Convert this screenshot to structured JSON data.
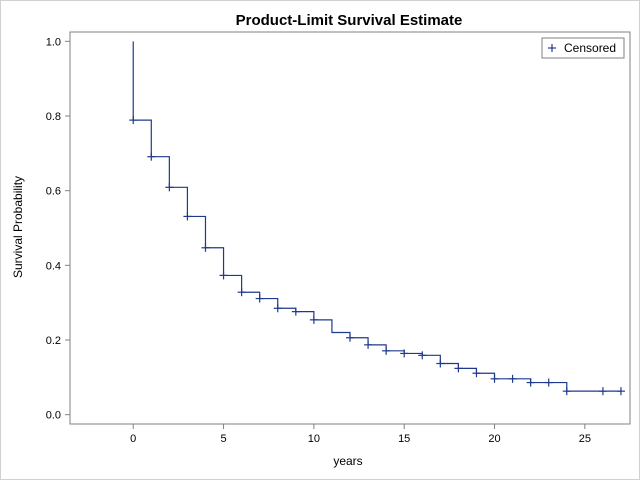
{
  "chart_data": {
    "type": "line",
    "title": "Product-Limit Survival Estimate",
    "xlabel": "years",
    "ylabel": "Survival Probability",
    "xlim": [
      -3.5,
      27.5
    ],
    "ylim": [
      -0.025,
      1.025
    ],
    "xticks": [
      0,
      5,
      10,
      15,
      20,
      25
    ],
    "yticks": [
      "0.0",
      "0.2",
      "0.4",
      "0.6",
      "0.8",
      "1.0"
    ],
    "grid": false,
    "legend": {
      "position": "top-right",
      "entries": [
        {
          "symbol": "+",
          "label": "Censored"
        }
      ]
    },
    "colors": {
      "series": "#1f3a8c"
    },
    "series": [
      {
        "step": "post",
        "x": [
          0,
          0,
          1,
          2,
          3,
          4,
          5,
          6,
          7,
          8,
          9,
          10,
          11,
          12,
          13,
          14,
          15,
          16,
          17,
          18,
          19,
          20,
          21,
          22,
          23,
          24,
          25,
          26,
          27
        ],
        "y": [
          1.0,
          0.789,
          0.691,
          0.609,
          0.531,
          0.447,
          0.373,
          0.328,
          0.311,
          0.285,
          0.276,
          0.254,
          0.22,
          0.206,
          0.187,
          0.171,
          0.164,
          0.159,
          0.137,
          0.124,
          0.111,
          0.096,
          0.096,
          0.086,
          0.086,
          0.063,
          0.063,
          0.063,
          0.063
        ]
      }
    ],
    "censored": {
      "x": [
        0,
        1,
        2,
        3,
        4,
        5,
        6,
        7,
        8,
        9,
        10,
        12,
        13,
        14,
        15,
        16,
        17,
        18,
        19,
        20,
        21,
        22,
        23,
        24,
        26,
        27
      ],
      "y": [
        0.789,
        0.691,
        0.609,
        0.531,
        0.447,
        0.373,
        0.328,
        0.311,
        0.285,
        0.276,
        0.254,
        0.206,
        0.187,
        0.171,
        0.164,
        0.159,
        0.137,
        0.124,
        0.111,
        0.096,
        0.096,
        0.086,
        0.086,
        0.063,
        0.063,
        0.063
      ]
    }
  }
}
